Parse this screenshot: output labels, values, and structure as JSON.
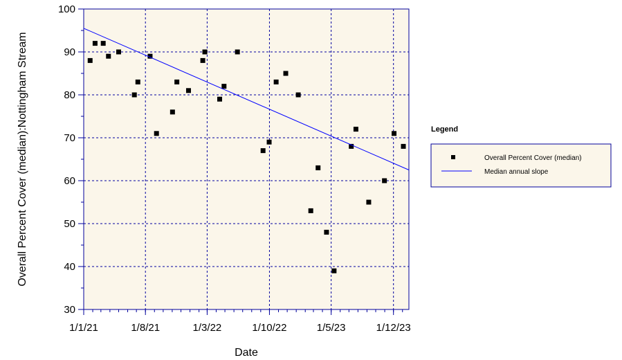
{
  "chart_data": {
    "type": "scatter",
    "xlabel": "Date",
    "ylabel": "Overall Percent Cover (median):Nottingham Stream",
    "x_axis": {
      "kind": "date",
      "range": [
        "2021-01-01",
        "2024-01-23"
      ],
      "ticks": [
        "2021-01-01",
        "2021-08-01",
        "2022-03-01",
        "2022-10-01",
        "2023-05-01",
        "2023-12-01"
      ],
      "tick_labels": [
        "1/1/21",
        "1/8/21",
        "1/3/22",
        "1/10/22",
        "1/5/23",
        "1/12/23"
      ]
    },
    "ylim": [
      30,
      100
    ],
    "yticks": [
      30,
      40,
      50,
      60,
      70,
      80,
      90,
      100
    ],
    "grid": true,
    "colors": {
      "plot_background": "#fbf6ea",
      "frame": "#00009b",
      "grid": "#0000a0",
      "points": "#000000",
      "trend_line": "#0000ff",
      "legend_background": "#fbf6ea"
    },
    "series": [
      {
        "name": "Overall Percent Cover (median)",
        "kind": "points",
        "x": [
          "2021-01-23",
          "2021-02-09",
          "2021-03-09",
          "2021-03-27",
          "2021-05-01",
          "2021-06-24",
          "2021-07-06",
          "2021-08-17",
          "2021-09-08",
          "2021-11-02",
          "2021-11-17",
          "2021-12-27",
          "2022-02-14",
          "2022-02-21",
          "2022-04-13",
          "2022-04-28",
          "2022-06-13",
          "2022-09-09",
          "2022-09-30",
          "2022-10-24",
          "2022-11-26",
          "2023-01-08",
          "2023-02-20",
          "2023-03-17",
          "2023-04-15",
          "2023-05-11",
          "2023-07-09",
          "2023-07-25",
          "2023-09-07",
          "2023-10-31",
          "2023-12-03",
          "2024-01-04"
        ],
        "y": [
          88,
          92,
          92,
          89,
          90,
          80,
          83,
          89,
          71,
          76,
          83,
          81,
          88,
          90,
          79,
          82,
          90,
          67,
          69,
          83,
          85,
          80,
          53,
          63,
          48,
          39,
          68,
          72,
          55,
          60,
          71,
          68
        ]
      },
      {
        "name": "Median annual slope",
        "kind": "line",
        "x": [
          "2021-01-01",
          "2024-01-23"
        ],
        "y": [
          95.5,
          62.5
        ]
      }
    ],
    "legend": {
      "title": "Legend",
      "placement": "right",
      "entries": [
        {
          "label": "Overall Percent Cover (median)",
          "symbol": "square-marker"
        },
        {
          "label": "Median annual slope",
          "symbol": "line"
        }
      ]
    }
  }
}
